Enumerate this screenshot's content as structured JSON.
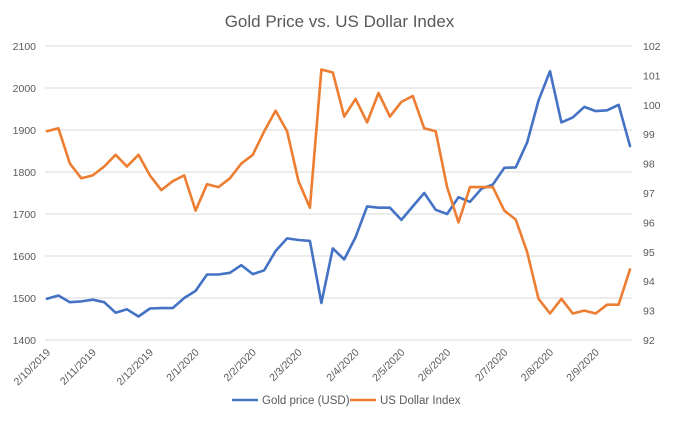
{
  "chart_data": {
    "type": "line",
    "title": "Gold Price vs. US Dollar Index",
    "xlabel": "",
    "ylabel": "",
    "y2label": "",
    "ylim": [
      1400,
      2100
    ],
    "y2lim": [
      92,
      102
    ],
    "yticks": [
      "1400",
      "1500",
      "1600",
      "1700",
      "1800",
      "1900",
      "2000",
      "2100"
    ],
    "y2ticks": [
      "92",
      "93",
      "94",
      "95",
      "96",
      "97",
      "98",
      "99",
      "100",
      "101",
      "102"
    ],
    "grid": "horizontal",
    "legend_position": "bottom",
    "x_tick_labels": [
      {
        "index": 0,
        "label": "2/10/2019"
      },
      {
        "index": 4,
        "label": "2/11/2019"
      },
      {
        "index": 9,
        "label": "2/12/2019"
      },
      {
        "index": 13,
        "label": "2/1/2020"
      },
      {
        "index": 18,
        "label": "2/2/2020"
      },
      {
        "index": 22,
        "label": "2/3/2020"
      },
      {
        "index": 27,
        "label": "2/4/2020"
      },
      {
        "index": 31,
        "label": "2/5/2020"
      },
      {
        "index": 35,
        "label": "2/6/2020"
      },
      {
        "index": 40,
        "label": "2/7/2020"
      },
      {
        "index": 44,
        "label": "2/8/2020"
      },
      {
        "index": 48,
        "label": "2/9/2020"
      }
    ],
    "series": [
      {
        "name": "Gold price (USD)",
        "axis": "left",
        "color": "#4472C4",
        "values": [
          1498,
          1506,
          1490,
          1492,
          1496,
          1490,
          1465,
          1473,
          1456,
          1475,
          1476,
          1476,
          1500,
          1517,
          1556,
          1556,
          1560,
          1578,
          1557,
          1566,
          1612,
          1642,
          1638,
          1636,
          1488,
          1618,
          1592,
          1645,
          1718,
          1715,
          1715,
          1686,
          1718,
          1750,
          1710,
          1700,
          1740,
          1729,
          1760,
          1770,
          1810,
          1811,
          1870,
          1970,
          2040,
          1918,
          1930,
          1955,
          1945,
          1947,
          1960,
          1862
        ]
      },
      {
        "name": "US Dollar Index",
        "axis": "right",
        "color": "#ED7D31",
        "values": [
          99.1,
          99.2,
          98.0,
          97.5,
          97.6,
          97.9,
          98.3,
          97.9,
          98.3,
          97.6,
          97.1,
          97.4,
          97.6,
          96.4,
          97.3,
          97.2,
          97.5,
          98.0,
          98.3,
          99.1,
          99.8,
          99.1,
          97.4,
          96.5,
          101.2,
          101.1,
          99.6,
          100.2,
          99.4,
          100.4,
          99.6,
          100.1,
          100.3,
          99.2,
          99.1,
          97.2,
          96.0,
          97.2,
          97.2,
          97.2,
          96.4,
          96.1,
          95.0,
          93.4,
          92.9,
          93.4,
          92.9,
          93.0,
          92.9,
          93.2,
          93.2,
          94.4
        ]
      }
    ]
  }
}
